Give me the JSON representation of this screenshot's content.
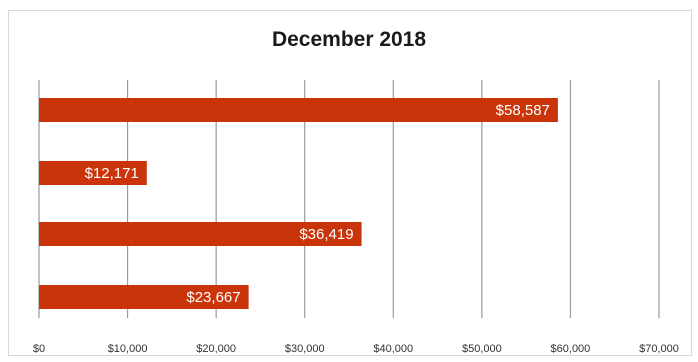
{
  "chart_data": {
    "type": "bar",
    "orientation": "horizontal",
    "title": "December 2018",
    "xlabel": "",
    "ylabel": "",
    "categories": [
      "",
      "",
      "",
      ""
    ],
    "values": [
      58587,
      12171,
      36419,
      23667
    ],
    "data_labels": [
      "$58,587",
      "$12,171",
      "$36,419",
      "$23,667"
    ],
    "xlim": [
      0,
      70000
    ],
    "x_ticks": [
      0,
      10000,
      20000,
      30000,
      40000,
      50000,
      60000,
      70000
    ],
    "x_tick_labels": [
      "$0",
      "$10,000",
      "$20,000",
      "$30,000",
      "$40,000",
      "$50,000",
      "$60,000",
      "$70,000"
    ],
    "grid": "vertical",
    "legend": "none",
    "bar_color": "#c9340a",
    "grid_color": "#9a9a9a"
  }
}
